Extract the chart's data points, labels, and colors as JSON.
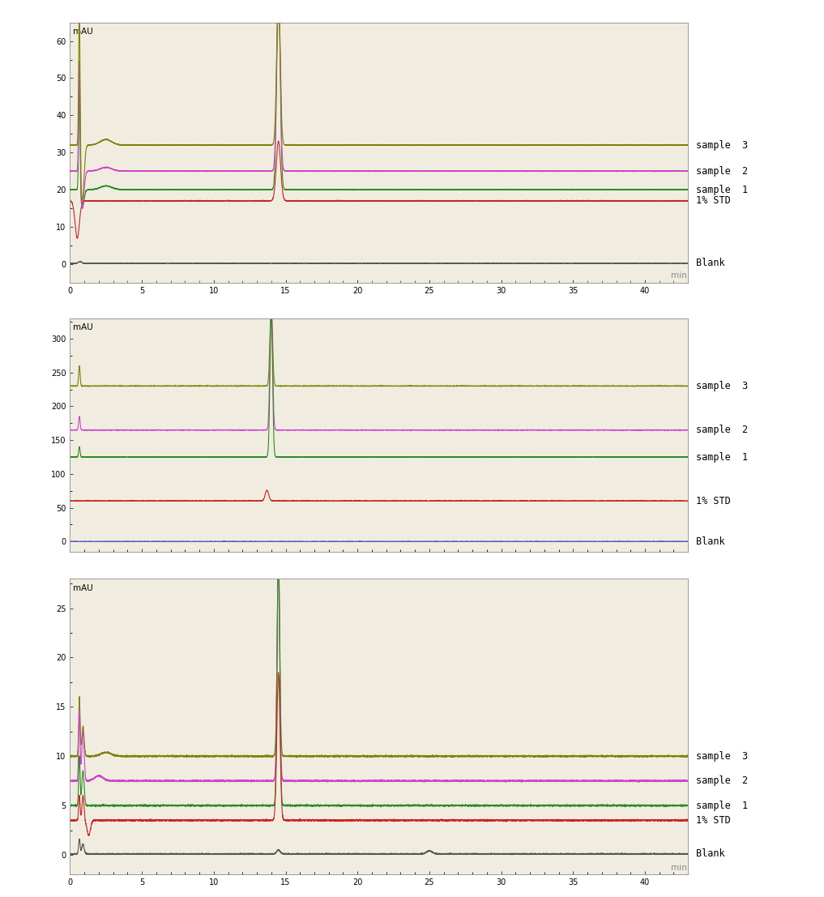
{
  "page_bg": "#ffffff",
  "plot_bg": "#f0ede0",
  "border_color": "#999999",
  "colors": {
    "sample3": "#808000",
    "sample2": "#cc44cc",
    "sample1": "#2d8b22",
    "std": "#cc2222",
    "blank1": "#555555",
    "blank2": "#5555cc"
  },
  "xlim": [
    0,
    43
  ],
  "xticks": [
    0,
    5,
    10,
    15,
    20,
    25,
    30,
    35,
    40
  ],
  "xlabel": "min",
  "ylabel": "mAU",
  "legend_labels": [
    "sample 3",
    "sample 2",
    "sample 1",
    "1% STD",
    "Blank"
  ],
  "chart1": {
    "ylim": [
      -5,
      65
    ],
    "yticks": [
      0,
      10,
      20,
      30,
      40,
      50,
      60
    ],
    "baseline_sample3": 32,
    "baseline_sample2": 25,
    "baseline_sample1": 20,
    "baseline_std": 17,
    "baseline_blank": 0.2
  },
  "chart2": {
    "ylim": [
      -15,
      330
    ],
    "yticks": [
      0,
      50,
      100,
      150,
      200,
      250,
      300
    ],
    "baseline_sample3": 230,
    "baseline_sample2": 165,
    "baseline_sample1": 125,
    "baseline_std": 60,
    "baseline_blank": 0
  },
  "chart3": {
    "ylim": [
      -2,
      28
    ],
    "yticks": [
      0,
      5,
      10,
      15,
      20,
      25
    ],
    "baseline_sample3": 10,
    "baseline_sample2": 7.5,
    "baseline_sample1": 5,
    "baseline_std": 3.5,
    "baseline_blank": 0.1
  }
}
